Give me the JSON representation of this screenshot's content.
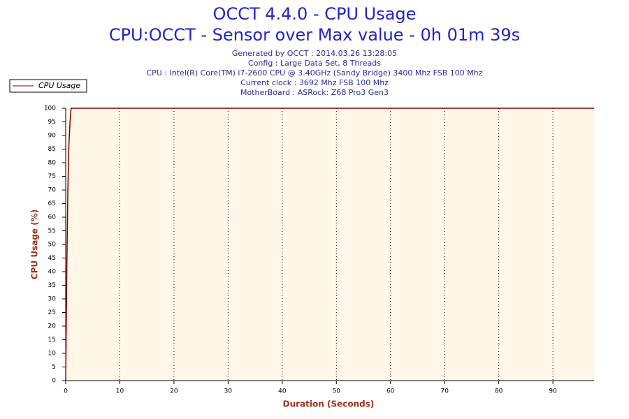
{
  "chart_data": {
    "type": "line",
    "title": "OCCT 4.4.0 - CPU Usage",
    "subtitle": "CPU:OCCT - Sensor over Max value - 0h 01m 39s",
    "info": [
      "Generated by OCCT : 2014.03.26 13:28:05",
      "Config : Large Data Set, 8 Threads",
      "CPU : Intel(R) Core(TM) i7-2600 CPU @ 3.40GHz (Sandy Bridge) 3400 Mhz FSB 100 Mhz",
      "Current clock : 3692 Mhz FSB 100 Mhz",
      "MotherBoard : ASRock: Z68 Pro3 Gen3"
    ],
    "x_label": "Duration (Seconds)",
    "y_label": "CPU Usage (%)",
    "x": [
      0,
      0.2,
      0.4,
      0.6,
      0.8,
      1,
      1.3,
      97.6
    ],
    "series": [
      {
        "name": "CPU Usage",
        "color": "#800000",
        "values": [
          0,
          40,
          70,
          87,
          95,
          100,
          100,
          100
        ]
      }
    ],
    "xlim": [
      0,
      97.6
    ],
    "ylim": [
      0,
      100
    ],
    "xticks": [
      0,
      10,
      20,
      30,
      40,
      50,
      60,
      70,
      80,
      90
    ],
    "yticks": [
      0,
      5,
      10,
      15,
      20,
      25,
      30,
      35,
      40,
      45,
      50,
      55,
      60,
      65,
      70,
      75,
      80,
      85,
      90,
      95,
      100
    ],
    "grid": true,
    "legend": "top-left"
  }
}
